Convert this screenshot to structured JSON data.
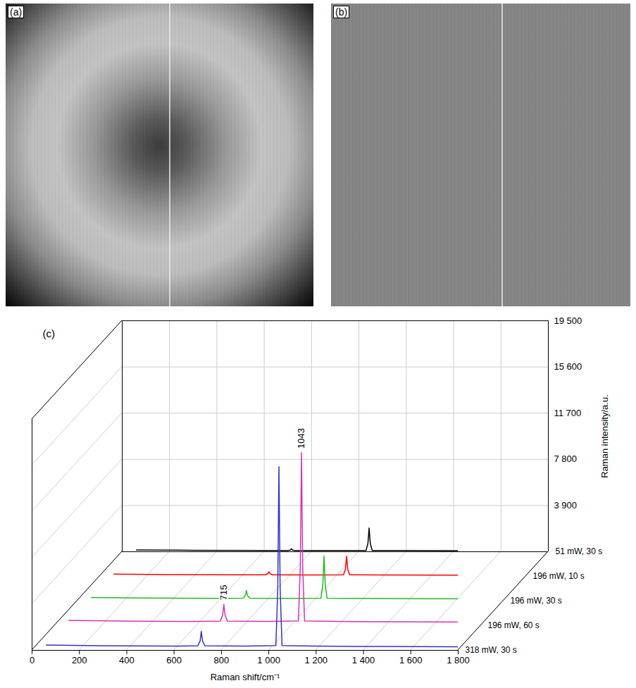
{
  "image_panels": [
    {
      "label": "(a)"
    },
    {
      "label": "(b)"
    }
  ],
  "chart_data": {
    "type": "line",
    "title": "(c)",
    "x_label": "Raman shift/cm⁻¹",
    "y_label": "Raman intensity/a.u.",
    "xlim": [
      0,
      1800
    ],
    "xticks": [
      0,
      200,
      400,
      600,
      800,
      {
        "value": 1000,
        "label": "1 000"
      },
      {
        "value": 1200,
        "label": "1 200"
      },
      {
        "value": 1400,
        "label": "1 400"
      },
      {
        "value": 1600,
        "label": "1 600"
      },
      {
        "value": 1800,
        "label": "1 800"
      }
    ],
    "ylim": [
      0,
      19500
    ],
    "yticks": [
      {
        "value": 3900,
        "label": "3 900"
      },
      {
        "value": 7800,
        "label": "7 800"
      },
      {
        "value": 11700,
        "label": "11 700"
      },
      {
        "value": 15600,
        "label": "15 600"
      },
      {
        "value": 19500,
        "label": "19 500"
      }
    ],
    "grid": true,
    "x": [
      60,
      300,
      600,
      700,
      710,
      715,
      720,
      730,
      900,
      1030,
      1038,
      1043,
      1048,
      1056,
      1200,
      1500,
      1800
    ],
    "series": [
      {
        "name": "51 mW, 30 s",
        "color": "#000000",
        "values": [
          150,
          120,
          110,
          110,
          140,
          250,
          140,
          110,
          100,
          110,
          700,
          2000,
          700,
          110,
          100,
          90,
          80
        ]
      },
      {
        "name": "196 mW, 10 s",
        "color": "#ff0000",
        "values": [
          200,
          150,
          130,
          130,
          220,
          400,
          220,
          130,
          120,
          130,
          600,
          1700,
          600,
          130,
          120,
          110,
          100
        ]
      },
      {
        "name": "196 mW, 30 s",
        "color": "#22bb22",
        "values": [
          300,
          250,
          230,
          240,
          450,
          900,
          450,
          240,
          220,
          240,
          1400,
          3800,
          1400,
          240,
          220,
          200,
          180
        ]
      },
      {
        "name": "196 mW, 60 s",
        "color": "#d633b8",
        "values": [
          450,
          380,
          350,
          380,
          900,
          1800,
          900,
          380,
          350,
          400,
          5000,
          14600,
          5000,
          400,
          350,
          320,
          300
        ]
      },
      {
        "name": "318 mW, 30 s",
        "color": "#3333cc",
        "values": [
          450,
          380,
          350,
          380,
          800,
          1600,
          800,
          380,
          350,
          400,
          5200,
          15500,
          5200,
          400,
          350,
          320,
          300
        ]
      }
    ],
    "annotations": [
      {
        "text": "1043",
        "x": 1043,
        "y": 14600,
        "series": "196 mW, 60 s"
      },
      {
        "text": "715",
        "x": 715,
        "y": 1800,
        "series": "196 mW, 60 s"
      }
    ]
  }
}
